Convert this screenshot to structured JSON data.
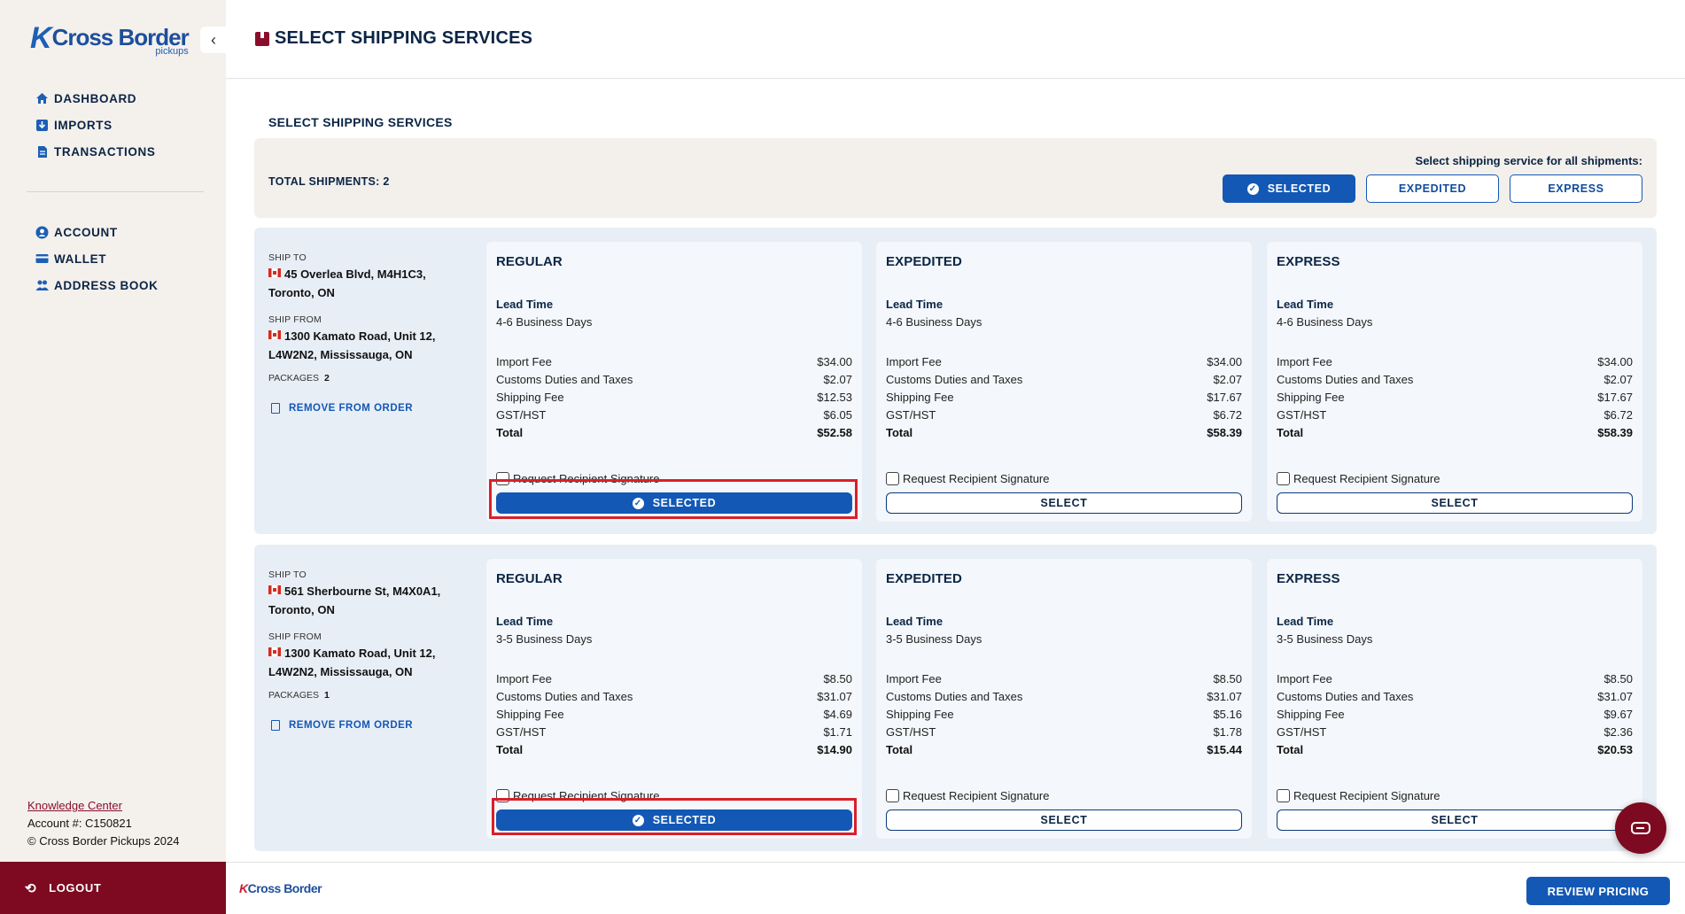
{
  "sidebar": {
    "logo": {
      "name": "Cross Border",
      "sub": "pickups"
    },
    "nav_main": [
      {
        "label": "DASHBOARD",
        "icon": "home-icon"
      },
      {
        "label": "IMPORTS",
        "icon": "imports-icon"
      },
      {
        "label": "TRANSACTIONS",
        "icon": "document-icon"
      }
    ],
    "nav_account": [
      {
        "label": "ACCOUNT",
        "icon": "user-icon"
      },
      {
        "label": "WALLET",
        "icon": "wallet-icon"
      },
      {
        "label": "ADDRESS BOOK",
        "icon": "address-book-icon"
      }
    ],
    "knowledge_center": "Knowledge Center",
    "account_number": "Account #: C150821",
    "copyright": "© Cross Border Pickups 2024",
    "logout": "LOGOUT"
  },
  "header": {
    "title": "SELECT SHIPPING SERVICES"
  },
  "section_title": "SELECT SHIPPING SERVICES",
  "summary": {
    "total_shipments": "TOTAL SHIPMENTS: 2",
    "hint": "Select shipping service for all shipments:",
    "buttons": [
      "SELECTED",
      "EXPEDITED",
      "EXPRESS"
    ]
  },
  "labels": {
    "ship_to": "SHIP TO",
    "ship_from": "SHIP FROM",
    "packages": "PACKAGES",
    "remove": "REMOVE FROM ORDER",
    "lead_time": "Lead Time",
    "signature": "Request Recipient Signature",
    "import_fee": "Import Fee",
    "customs": "Customs Duties and Taxes",
    "shipping_fee": "Shipping Fee",
    "gst": "GST/HST",
    "total": "Total",
    "selected": "SELECTED",
    "select": "SELECT"
  },
  "shipments": [
    {
      "ship_to": "45 Overlea Blvd, M4H1C3, Toronto, ON",
      "ship_from": "1300 Kamato Road, Unit 12, L4W2N2, Mississauga, ON",
      "packages": "2",
      "services": [
        {
          "name": "REGULAR",
          "lead_time": "4-6 Business Days",
          "import_fee": "$34.00",
          "customs": "$2.07",
          "shipping_fee": "$12.53",
          "gst": "$6.05",
          "total": "$52.58",
          "selected": true
        },
        {
          "name": "EXPEDITED",
          "lead_time": "4-6 Business Days",
          "import_fee": "$34.00",
          "customs": "$2.07",
          "shipping_fee": "$17.67",
          "gst": "$6.72",
          "total": "$58.39",
          "selected": false
        },
        {
          "name": "EXPRESS",
          "lead_time": "4-6 Business Days",
          "import_fee": "$34.00",
          "customs": "$2.07",
          "shipping_fee": "$17.67",
          "gst": "$6.72",
          "total": "$58.39",
          "selected": false
        }
      ]
    },
    {
      "ship_to": "561 Sherbourne St, M4X0A1, Toronto, ON",
      "ship_from": "1300 Kamato Road, Unit 12, L4W2N2, Mississauga, ON",
      "packages": "1",
      "services": [
        {
          "name": "REGULAR",
          "lead_time": "3-5 Business Days",
          "import_fee": "$8.50",
          "customs": "$31.07",
          "shipping_fee": "$4.69",
          "gst": "$1.71",
          "total": "$14.90",
          "selected": true
        },
        {
          "name": "EXPEDITED",
          "lead_time": "3-5 Business Days",
          "import_fee": "$8.50",
          "customs": "$31.07",
          "shipping_fee": "$5.16",
          "gst": "$1.78",
          "total": "$15.44",
          "selected": false
        },
        {
          "name": "EXPRESS",
          "lead_time": "3-5 Business Days",
          "import_fee": "$8.50",
          "customs": "$31.07",
          "shipping_fee": "$9.67",
          "gst": "$2.36",
          "total": "$20.53",
          "selected": false
        }
      ]
    }
  ],
  "bottom_bar": {
    "logo": "Cross Border",
    "review_button": "REVIEW PRICING"
  },
  "colors": {
    "brand_blue": "#1358b5",
    "brand_red": "#7d0a20",
    "highlight": "#d9202a"
  }
}
